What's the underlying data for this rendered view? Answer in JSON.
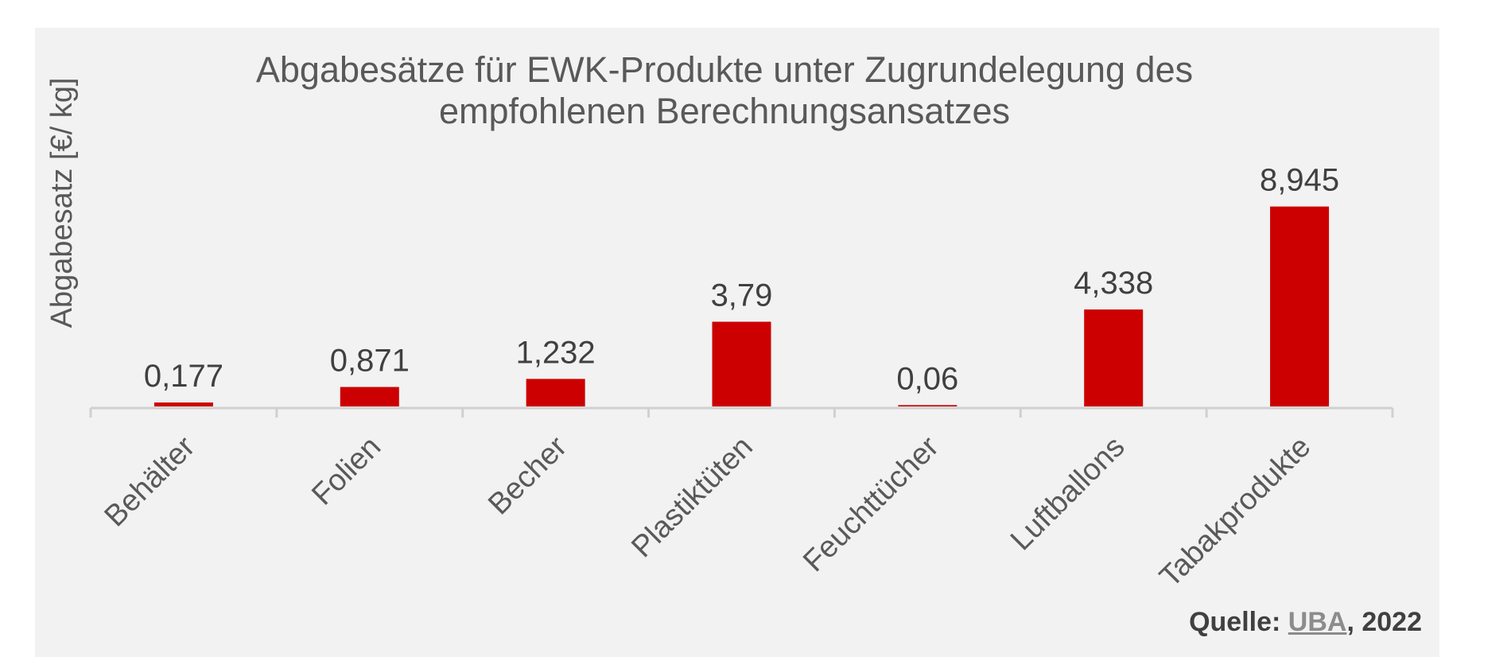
{
  "chart_data": {
    "type": "bar",
    "title_lines": [
      "Abgabesätze für EWK-Produkte unter Zugrundelegung des",
      "empfohlenen Berechnungsansatzes"
    ],
    "ylabel": "Abgabesatz [€/ kg]",
    "xlabel": "",
    "categories": [
      "Behälter",
      "Folien",
      "Becher",
      "Plastiktüten",
      "Feuchttücher",
      "Luftballons",
      "Tabakprodukte"
    ],
    "values": [
      0.177,
      0.871,
      1.232,
      3.79,
      0.06,
      4.338,
      8.945
    ],
    "value_labels": [
      "0,177",
      "0,871",
      "1,232",
      "3,79",
      "0,06",
      "4,338",
      "8,945"
    ],
    "ylim": [
      0,
      10
    ],
    "bar_color": "#cc0000",
    "grid": false,
    "legend": "none"
  },
  "source": {
    "prefix": "Quelle: ",
    "link_text": "UBA",
    "suffix": ", 2022"
  }
}
